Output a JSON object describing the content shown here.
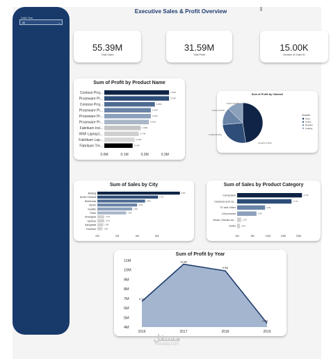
{
  "page_title": "Executive Sales & Profit Overview",
  "slicer": {
    "label": "Order Year",
    "value": "All"
  },
  "kpis": [
    {
      "value": "55.39M",
      "label": "Total Sales"
    },
    {
      "value": "31.59M",
      "label": "Total Profit"
    },
    {
      "value": "15.00K",
      "label": "Number of Order ID"
    }
  ],
  "colors": {
    "sidebar": "#173a6b",
    "navy": "#0f2446",
    "gradient": [
      "#0f2446",
      "#2e4d78",
      "#4d6a92",
      "#6a84a8",
      "#8ba0bb",
      "#a8b6c8",
      "#c4c4c4",
      "#cfcfcf",
      "#d8d8d8"
    ],
    "area_fill": "#9fb2cc",
    "line": "#1f3c6e"
  },
  "watermark": {
    "arabic": "مستقل",
    "latin": "mostaql.com"
  },
  "chart_data": [
    {
      "type": "bar",
      "orientation": "horizontal",
      "title": "Sum of Profit by Product Name",
      "categories": [
        "Contoso Proj...",
        "Proseware Pr...",
        "Contoso Proj...",
        "Proseware Pr...",
        "Proseware Pr...",
        "Proseware Pr...",
        "Fabrikam Ind...",
        "WWI Laptop1...",
        "Fabrikam Lap...",
        "Fabrikam Tre..."
      ],
      "values": [
        0.32,
        0.32,
        0.25,
        0.23,
        0.23,
        0.22,
        0.18,
        0.17,
        0.15,
        0.14
      ],
      "value_labels": [
        "0.32M",
        "0.32M",
        "0.25M",
        "0.23M",
        "0.23M",
        "0.22M",
        "0.18M",
        "0.17M",
        "0.15M",
        "0.14M"
      ],
      "xticks": [
        "0.0M",
        "0.1M",
        "0.2M",
        "0.3M"
      ],
      "xlim": [
        0,
        0.33
      ]
    },
    {
      "type": "pie",
      "title": "Sum of Profit by Channel",
      "legend_title": "Channel",
      "legend_position": "right",
      "categories": [
        "Store",
        "Online",
        "Reseller",
        "Catalog"
      ],
      "values": [
        15.02,
        8.23,
        4.32,
        4.01
      ],
      "value_labels": [
        "15.02M (47.56%)",
        "8.23M (26.06%)",
        "4.32M (13.69%)",
        "4.01M (12.69%)"
      ]
    },
    {
      "type": "bar",
      "orientation": "horizontal",
      "title": "Sum of Sales by City",
      "categories": [
        "Beijing",
        "North Holland",
        "Bethesda",
        "Berlin",
        "Seattle",
        "Paris",
        "Shanghai",
        "Sydney",
        "Ashgabat",
        "Houston"
      ],
      "values": [
        8.3,
        6.1,
        4.8,
        4.0,
        3.5,
        2.9,
        0.7,
        0.7,
        0.6,
        0.5
      ],
      "value_labels": [
        "8.3M",
        "6.1M",
        "4.8M",
        "4.0M",
        "3.5M",
        "2.9M",
        "0.7M",
        "0.7M",
        "0.6M",
        "0.5M"
      ],
      "xticks": [
        "0M",
        "2M",
        "4M",
        "6M"
      ],
      "xlim": [
        0,
        8.6
      ]
    },
    {
      "type": "bar",
      "orientation": "horizontal",
      "title": "Sum of Sales by Product Category",
      "categories": [
        "Computers",
        "Cameras and ca...",
        "TV and Video",
        "Cell phones",
        "Music, Movies an...",
        "Audio"
      ],
      "values": [
        21.1,
        17.7,
        9.1,
        6.3,
        1.3,
        0.9
      ],
      "value_labels": [
        "21.1M",
        "17.7M",
        "9.1M",
        "6.3M",
        "1.3M",
        "0.9M"
      ],
      "xticks": [
        "0M",
        "5M",
        "10M",
        "15M",
        "20M"
      ],
      "xlim": [
        0,
        21.5
      ]
    },
    {
      "type": "area",
      "title": "Sum of Profit by Year",
      "x": [
        "2016",
        "2017",
        "2018",
        "2019"
      ],
      "values": [
        6.7,
        10.6,
        9.9,
        4.4
      ],
      "value_labels": [
        "6.7M",
        "10.6M",
        "9.9M",
        "4.4M"
      ],
      "yticks": [
        "4M",
        "5M",
        "6M",
        "7M",
        "8M",
        "9M",
        "10M",
        "11M"
      ],
      "ylim": [
        4,
        11
      ]
    }
  ]
}
